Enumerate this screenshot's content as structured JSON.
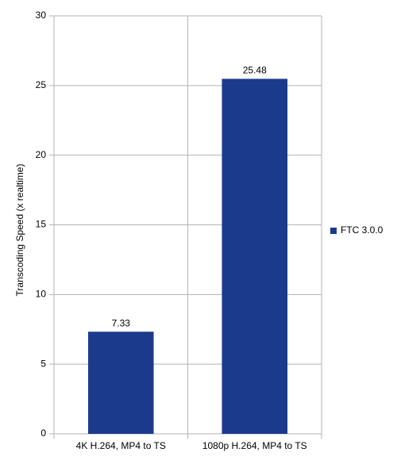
{
  "chart_data": {
    "type": "bar",
    "y_label": "Transcoding Speed (x realtime)",
    "categories": [
      "4K H.264, MP4 to TS",
      "1080p H.264, MP4 to TS"
    ],
    "series": [
      {
        "name": "FTC 3.0.0",
        "color": "#1c3a8c",
        "values": [
          7.33,
          25.48
        ]
      }
    ],
    "ylim": [
      0,
      30
    ],
    "yticks": [
      0,
      5,
      10,
      15,
      20,
      25,
      30
    ],
    "grid": true,
    "legend": "right"
  }
}
